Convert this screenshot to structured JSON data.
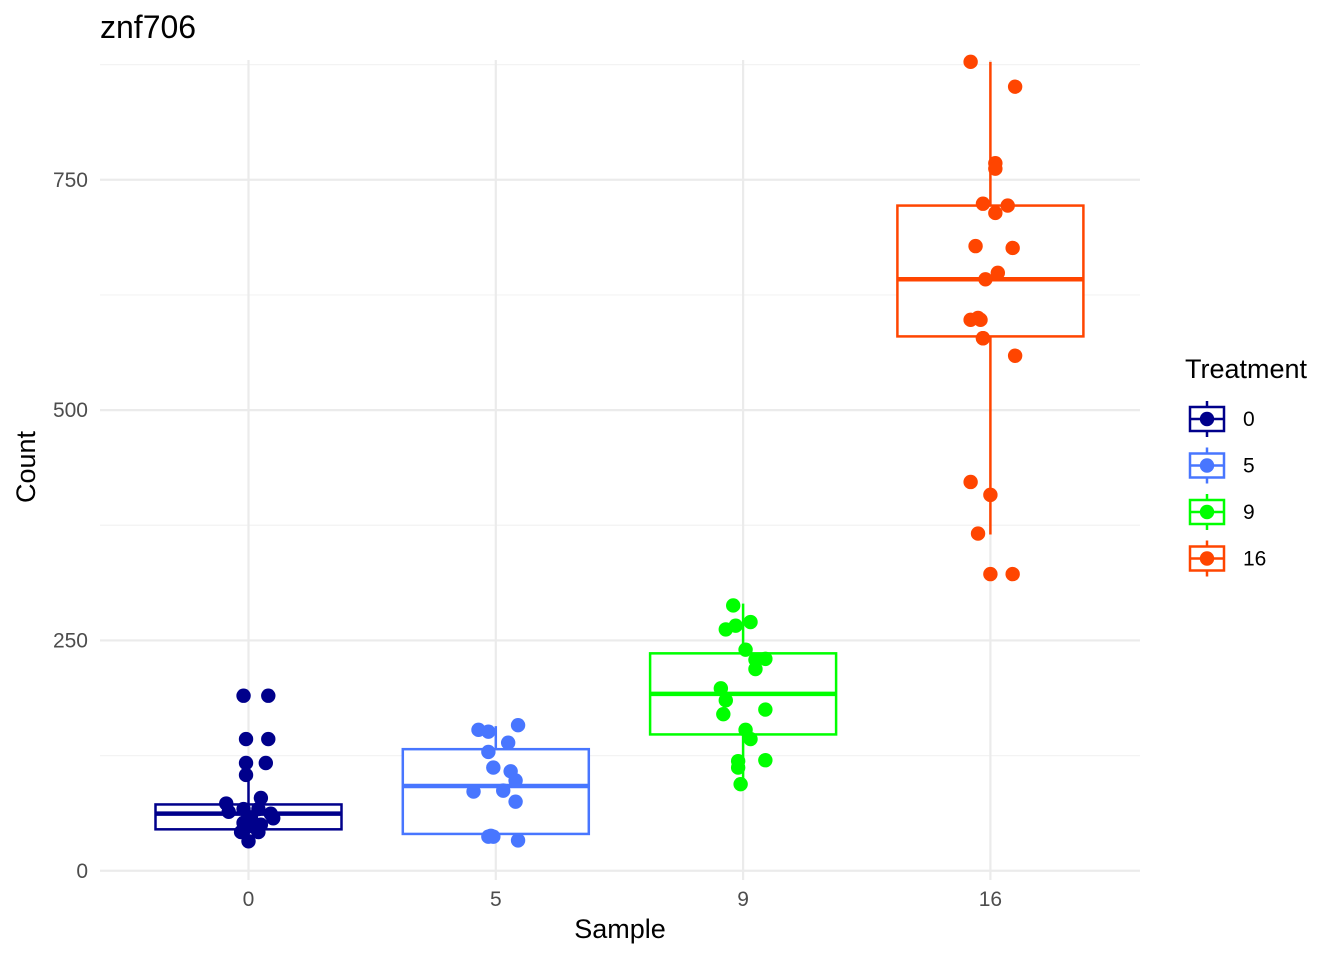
{
  "chart_data": {
    "type": "box",
    "title": "znf706",
    "xlabel": "Sample",
    "ylabel": "Count",
    "categories": [
      "0",
      "5",
      "9",
      "16"
    ],
    "y_ticks": [
      "0",
      "250",
      "500",
      "750"
    ],
    "ylim": [
      -10,
      880
    ],
    "grid": true,
    "legend": {
      "title": "Treatment",
      "placement": "right"
    },
    "series": [
      {
        "name": "0",
        "color": "#00008B",
        "box": {
          "q1": 45,
          "median": 62,
          "q3": 72,
          "whisker_low": 32,
          "whisker_high": 100
        },
        "points": [
          [
            -0.02,
            190
          ],
          [
            0.08,
            190
          ],
          [
            -0.01,
            143
          ],
          [
            0.08,
            143
          ],
          [
            -0.01,
            117
          ],
          [
            0.07,
            117
          ],
          [
            -0.01,
            104
          ],
          [
            -0.09,
            73
          ],
          [
            0.05,
            79
          ],
          [
            -0.02,
            67
          ],
          [
            -0.08,
            64
          ],
          [
            0.04,
            67
          ],
          [
            0.09,
            62
          ],
          [
            0.1,
            57
          ],
          [
            0.01,
            58
          ],
          [
            -0.02,
            52
          ],
          [
            0.05,
            50
          ],
          [
            0.02,
            48
          ],
          [
            -0.02,
            44
          ],
          [
            0.04,
            42
          ],
          [
            -0.03,
            42
          ],
          [
            0.0,
            32
          ]
        ]
      },
      {
        "name": "5",
        "color": "#4876FF",
        "box": {
          "q1": 40,
          "median": 92,
          "q3": 132,
          "whisker_low": 35,
          "whisker_high": 157
        },
        "points": [
          [
            -0.07,
            153
          ],
          [
            -0.03,
            151
          ],
          [
            0.09,
            158
          ],
          [
            0.05,
            139
          ],
          [
            -0.03,
            129
          ],
          [
            -0.01,
            112
          ],
          [
            0.06,
            108
          ],
          [
            0.08,
            98
          ],
          [
            -0.09,
            86
          ],
          [
            0.03,
            87
          ],
          [
            0.08,
            75
          ],
          [
            -0.02,
            38
          ],
          [
            -0.03,
            37
          ],
          [
            -0.01,
            37
          ],
          [
            0.09,
            33
          ]
        ]
      },
      {
        "name": "9",
        "color": "#00FF00",
        "box": {
          "q1": 148,
          "median": 192,
          "q3": 236,
          "whisker_low": 95,
          "whisker_high": 290
        },
        "points": [
          [
            -0.04,
            288
          ],
          [
            0.03,
            270
          ],
          [
            -0.03,
            266
          ],
          [
            -0.07,
            262
          ],
          [
            0.01,
            240
          ],
          [
            0.09,
            230
          ],
          [
            0.05,
            229
          ],
          [
            0.05,
            219
          ],
          [
            -0.09,
            198
          ],
          [
            -0.07,
            185
          ],
          [
            0.09,
            175
          ],
          [
            -0.08,
            170
          ],
          [
            0.01,
            153
          ],
          [
            0.03,
            143
          ],
          [
            0.09,
            120
          ],
          [
            -0.02,
            119
          ],
          [
            -0.02,
            112
          ],
          [
            -0.01,
            94
          ]
        ]
      },
      {
        "name": "16",
        "color": "#FF4500",
        "box": {
          "q1": 580,
          "median": 642,
          "q3": 722,
          "whisker_low": 365,
          "whisker_high": 878
        },
        "points": [
          [
            -0.08,
            878
          ],
          [
            0.1,
            851
          ],
          [
            0.02,
            768
          ],
          [
            0.02,
            762
          ],
          [
            -0.03,
            724
          ],
          [
            0.07,
            722
          ],
          [
            0.02,
            714
          ],
          [
            -0.06,
            678
          ],
          [
            0.09,
            676
          ],
          [
            0.03,
            649
          ],
          [
            -0.02,
            642
          ],
          [
            -0.05,
            600
          ],
          [
            -0.04,
            598
          ],
          [
            -0.08,
            598
          ],
          [
            -0.03,
            578
          ],
          [
            -0.03,
            578
          ],
          [
            0.1,
            559
          ],
          [
            -0.08,
            422
          ],
          [
            0.0,
            408
          ],
          [
            -0.05,
            366
          ],
          [
            0.0,
            322
          ],
          [
            0.09,
            322
          ]
        ]
      }
    ]
  }
}
